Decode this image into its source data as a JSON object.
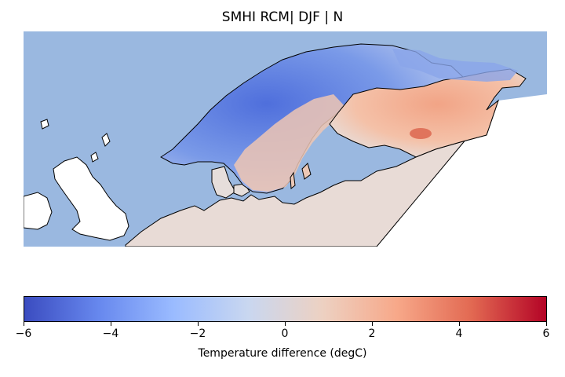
{
  "title": "SMHI RCM| DJF | N",
  "colorbar": {
    "label": "Temperature difference (degC)",
    "min": -6,
    "max": 6,
    "ticks": [
      "−6",
      "−4",
      "−2",
      "0",
      "2",
      "4",
      "6"
    ],
    "tick_values": [
      -6,
      -4,
      -2,
      0,
      2,
      4,
      6
    ],
    "colormap": "coolwarm",
    "colors": [
      "#3b4cc0",
      "#6788ee",
      "#9abbff",
      "#c9d7f0",
      "#edd1c2",
      "#f7a889",
      "#e26952",
      "#b40426"
    ]
  },
  "map": {
    "projection": "rotated pole",
    "ocean_color": "#9ab8e0",
    "land_outside_domain_color": "#ffffff",
    "coastline_color": "#000000"
  }
}
